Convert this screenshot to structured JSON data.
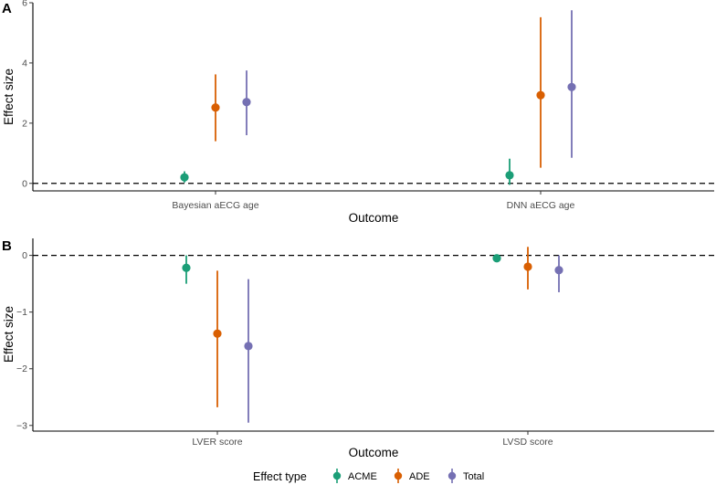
{
  "chart_data": [
    {
      "panel": "A",
      "type": "pointrange",
      "ylabel": "Effect size",
      "xlabel": "Outcome",
      "categories": [
        "Bayesian aECG age",
        "DNN aECG age"
      ],
      "ylim": [
        -0.25,
        6
      ],
      "yticks": [
        0,
        2,
        4,
        6
      ],
      "yticklabels": [
        "0",
        "2",
        "4",
        "6"
      ],
      "reference_line": 0,
      "series": [
        {
          "name": "ACME",
          "estimates": [
            0.2,
            0.27
          ],
          "lower": [
            0.03,
            -0.05
          ],
          "upper": [
            0.4,
            0.82
          ]
        },
        {
          "name": "ADE",
          "estimates": [
            2.52,
            2.93
          ],
          "lower": [
            1.4,
            0.52
          ],
          "upper": [
            3.62,
            5.52
          ]
        },
        {
          "name": "Total",
          "estimates": [
            2.7,
            3.2
          ],
          "lower": [
            1.6,
            0.85
          ],
          "upper": [
            3.75,
            5.75
          ]
        }
      ]
    },
    {
      "panel": "B",
      "type": "pointrange",
      "ylabel": "Effect size",
      "xlabel": "Outcome",
      "categories": [
        "LVER score",
        "LVSD  score"
      ],
      "ylim": [
        -3.1,
        0.3
      ],
      "yticks": [
        0,
        -1,
        -2,
        -3
      ],
      "yticklabels": [
        "0",
        "−1",
        "−2",
        "−3"
      ],
      "reference_line": 0,
      "series": [
        {
          "name": "ACME",
          "estimates": [
            -0.22,
            -0.05
          ],
          "lower": [
            -0.5,
            -0.1
          ],
          "upper": [
            0.0,
            0.0
          ]
        },
        {
          "name": "ADE",
          "estimates": [
            -1.38,
            -0.2
          ],
          "lower": [
            -2.68,
            -0.6
          ],
          "upper": [
            -0.27,
            0.15
          ]
        },
        {
          "name": "Total",
          "estimates": [
            -1.6,
            -0.26
          ],
          "lower": [
            -2.95,
            -0.65
          ],
          "upper": [
            -0.42,
            0.0
          ]
        }
      ]
    }
  ],
  "legend": {
    "title": "Effect type",
    "items": [
      {
        "label": "ACME",
        "color": "#1b9e77"
      },
      {
        "label": "ADE",
        "color": "#d95f02"
      },
      {
        "label": "Total",
        "color": "#7570b3"
      }
    ]
  }
}
